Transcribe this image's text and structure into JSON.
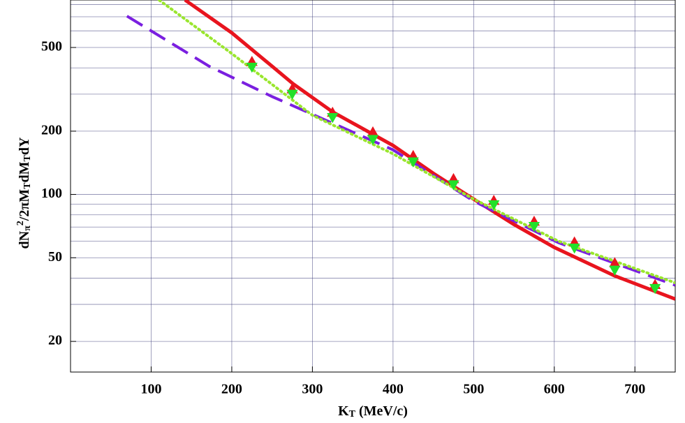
{
  "chart_data": {
    "type": "line",
    "xlabel": [
      {
        "text": "K",
        "pos": "base"
      },
      {
        "text": "T",
        "pos": "sub"
      },
      {
        "text": " (MeV/c)",
        "pos": "base"
      }
    ],
    "ylabel": [
      {
        "text": "dN",
        "pos": "base"
      },
      {
        "text": "π",
        "pos": "sub"
      },
      {
        "text": "2",
        "pos": "sup"
      },
      {
        "text": "/2πM",
        "pos": "base"
      },
      {
        "text": "T",
        "pos": "sub"
      },
      {
        "text": "dM",
        "pos": "base"
      },
      {
        "text": "T",
        "pos": "sub"
      },
      {
        "text": "dY",
        "pos": "base"
      }
    ],
    "xlim": [
      0,
      750
    ],
    "xticks": [
      100,
      200,
      300,
      400,
      500,
      600,
      700
    ],
    "ylim": [
      14.3,
      841
    ],
    "yticks": [
      20,
      50,
      100,
      200,
      500
    ],
    "y_minor_grid": [
      30,
      40,
      60,
      70,
      80,
      90,
      300,
      400,
      600,
      700,
      800
    ],
    "log_y": true,
    "grid": true,
    "series": [
      {
        "color": "#e8141e",
        "style": "solid",
        "x": [
          142,
          200,
          250,
          276,
          325,
          400,
          450,
          500,
          550,
          600,
          675,
          750
        ],
        "values": [
          841,
          587,
          407,
          336,
          247,
          171,
          126,
          95,
          72,
          56,
          41,
          31.8
        ]
      },
      {
        "color": "#7a1fe0",
        "style": "dashed",
        "x": [
          70,
          172,
          250,
          323,
          400,
          500,
          605,
          750
        ],
        "values": [
          705,
          407,
          292,
          220,
          163,
          93,
          59,
          37
        ]
      },
      {
        "color": "#9ae62e",
        "style": "dotted",
        "x": [
          110,
          198,
          300,
          400,
          500,
          605,
          750
        ],
        "values": [
          840,
          474,
          238,
          156,
          95,
          60,
          38
        ]
      },
      {
        "color": "#e8141e",
        "style": "markers",
        "marker": "triangle-up",
        "x": [
          225,
          275,
          325,
          375,
          425,
          475,
          525,
          575,
          625,
          675,
          725
        ],
        "values": [
          426,
          316,
          244,
          197,
          152,
          118,
          93,
          74,
          59,
          47,
          37
        ]
      },
      {
        "color": "#22e02a",
        "style": "markers",
        "marker": "triangle-down",
        "x": [
          225,
          275,
          325,
          375,
          425,
          475,
          525,
          575,
          625,
          675,
          725
        ],
        "values": [
          406,
          302,
          234,
          184,
          144,
          112,
          90,
          71,
          56,
          44,
          36
        ]
      }
    ]
  }
}
